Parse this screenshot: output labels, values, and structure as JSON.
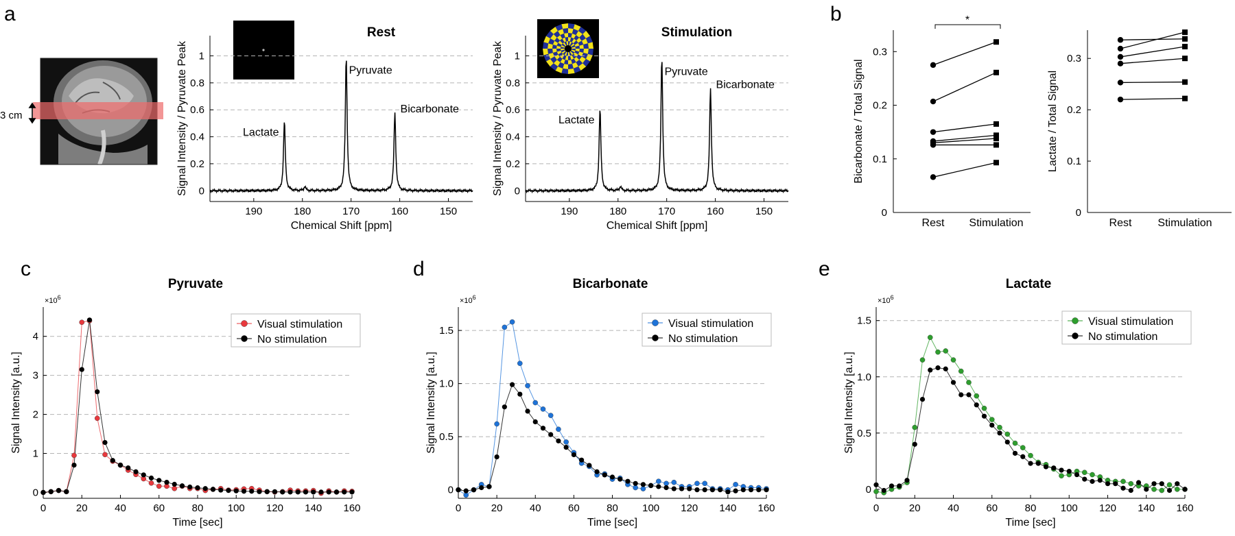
{
  "panels": {
    "a": "a",
    "b": "b",
    "c": "c",
    "d": "d",
    "e": "e",
    "slab_label": "3 cm"
  },
  "colors": {
    "stim_red": "#e8383d",
    "stim_blue": "#1e73d8",
    "stim_green": "#2e9e2e",
    "no_stim": "#000000",
    "slab": "#ee6a6a",
    "grid": "#b4b4b4",
    "checker_blue": "#1f2f9a",
    "checker_yellow": "#f2e21a"
  },
  "chart_data": [
    {
      "id": "spec-rest",
      "type": "line",
      "title": "Rest",
      "xlabel": "Chemical Shift [ppm]",
      "ylabel": "Signal Intensity / Pyruvate Peak",
      "xlim": [
        199,
        145
      ],
      "ylim": [
        -0.08,
        1.15
      ],
      "xticks": [
        190,
        180,
        170,
        160,
        150
      ],
      "yticks": [
        0,
        0.2,
        0.4,
        0.6,
        0.8,
        1
      ],
      "peaks": [
        {
          "label": "Lactate",
          "ppm": 183.7,
          "height": 0.52
        },
        {
          "label": "Pyruvate",
          "ppm": 171.0,
          "height": 1.0
        },
        {
          "label": "Bicarbonate",
          "ppm": 161.0,
          "height": 0.58
        }
      ],
      "small_peaks": [
        {
          "ppm": 179.5,
          "height": 0.03
        }
      ]
    },
    {
      "id": "spec-stim",
      "type": "line",
      "title": "Stimulation",
      "xlabel": "Chemical Shift [ppm]",
      "ylabel": "Signal Intensity / Pyruvate Peak",
      "xlim": [
        199,
        145
      ],
      "ylim": [
        -0.08,
        1.15
      ],
      "xticks": [
        190,
        180,
        170,
        160,
        150
      ],
      "yticks": [
        0,
        0.2,
        0.4,
        0.6,
        0.8,
        1
      ],
      "peaks": [
        {
          "label": "Lactate",
          "ppm": 183.7,
          "height": 0.61
        },
        {
          "label": "Pyruvate",
          "ppm": 171.0,
          "height": 0.99
        },
        {
          "label": "Bicarbonate",
          "ppm": 161.0,
          "height": 0.76
        }
      ],
      "small_peaks": [
        {
          "ppm": 179.5,
          "height": 0.03
        }
      ]
    },
    {
      "id": "bicarb-ratio",
      "type": "scatter",
      "title": "",
      "ylabel": "Bicarbonate / Total Signal",
      "categories": [
        "Rest",
        "Stimulation"
      ],
      "ylim": [
        0,
        0.34
      ],
      "yticks": [
        0,
        0.1,
        0.2,
        0.3
      ],
      "significance": "*",
      "pairs": [
        [
          0.275,
          0.318
        ],
        [
          0.207,
          0.261
        ],
        [
          0.15,
          0.165
        ],
        [
          0.133,
          0.144
        ],
        [
          0.13,
          0.138
        ],
        [
          0.126,
          0.126
        ],
        [
          0.066,
          0.093
        ]
      ]
    },
    {
      "id": "lactate-ratio",
      "type": "scatter",
      "title": "",
      "ylabel": "Lactate / Total Signal",
      "categories": [
        "Rest",
        "Stimulation"
      ],
      "ylim": [
        0,
        0.355
      ],
      "yticks": [
        0,
        0.1,
        0.2,
        0.3
      ],
      "pairs": [
        [
          0.336,
          0.338
        ],
        [
          0.319,
          0.351
        ],
        [
          0.303,
          0.323
        ],
        [
          0.29,
          0.3
        ],
        [
          0.253,
          0.254
        ],
        [
          0.22,
          0.222
        ]
      ]
    },
    {
      "id": "pyruvate",
      "type": "line",
      "title": "Pyruvate",
      "xlabel": "Time [sec]",
      "ylabel": "Signal Intensity [a.u.]",
      "yscale_label": "×10",
      "yscale_exp": "6",
      "xlim": [
        0,
        160
      ],
      "ylim": [
        -0.15,
        4.75
      ],
      "xticks": [
        0,
        20,
        40,
        60,
        80,
        100,
        120,
        140,
        160
      ],
      "yticks": [
        0,
        1,
        2,
        3,
        4
      ],
      "ytick_labels": [
        "0",
        "1",
        "2",
        "3",
        "4"
      ],
      "x": [
        0,
        4,
        8,
        12,
        16,
        20,
        24,
        28,
        32,
        36,
        40,
        44,
        48,
        52,
        56,
        60,
        64,
        68,
        72,
        76,
        80,
        84,
        88,
        92,
        96,
        100,
        104,
        108,
        112,
        116,
        120,
        124,
        128,
        132,
        136,
        140,
        144,
        148,
        152,
        156,
        160
      ],
      "series": [
        {
          "name": "Visual stimulation",
          "color": "#e8383d",
          "values": [
            0.0,
            0.02,
            0.05,
            0.02,
            0.95,
            4.36,
            4.4,
            1.9,
            0.97,
            0.8,
            0.7,
            0.57,
            0.46,
            0.35,
            0.24,
            0.16,
            0.16,
            0.1,
            0.16,
            0.1,
            0.1,
            0.05,
            0.08,
            0.1,
            0.06,
            0.07,
            0.09,
            0.1,
            0.06,
            0.02,
            0.01,
            0.02,
            0.06,
            0.04,
            0.04,
            0.05,
            -0.02,
            0.04,
            0.01,
            0.04,
            0.03
          ]
        },
        {
          "name": "No stimulation",
          "color": "#000000",
          "values": [
            0.0,
            0.02,
            0.05,
            0.02,
            0.7,
            3.15,
            4.42,
            2.58,
            1.28,
            0.82,
            0.7,
            0.63,
            0.53,
            0.45,
            0.37,
            0.31,
            0.26,
            0.21,
            0.17,
            0.14,
            0.12,
            0.1,
            0.08,
            0.06,
            0.05,
            0.04,
            0.03,
            0.03,
            0.02,
            0.02,
            0.02,
            0.01,
            0.01,
            0.01,
            0.01,
            0.01,
            0.01,
            0.01,
            0.01,
            0.01,
            0.01
          ]
        }
      ]
    },
    {
      "id": "bicarbonate",
      "type": "line",
      "title": "Bicarbonate",
      "xlabel": "Time [sec]",
      "ylabel": "Signal Intensity [a.u.]",
      "yscale_label": "×10",
      "yscale_exp": "6",
      "xlim": [
        0,
        160
      ],
      "ylim": [
        -0.08,
        1.72
      ],
      "xticks": [
        0,
        20,
        40,
        60,
        80,
        100,
        120,
        140,
        160
      ],
      "yticks": [
        0,
        0.5,
        1.0,
        1.5
      ],
      "ytick_labels": [
        "0",
        "0.5",
        "1.0",
        "1.5"
      ],
      "x": [
        0,
        4,
        8,
        12,
        16,
        20,
        24,
        28,
        32,
        36,
        40,
        44,
        48,
        52,
        56,
        60,
        64,
        68,
        72,
        76,
        80,
        84,
        88,
        92,
        96,
        100,
        104,
        108,
        112,
        116,
        120,
        124,
        128,
        132,
        136,
        140,
        144,
        148,
        152,
        156,
        160
      ],
      "series": [
        {
          "name": "Visual stimulation",
          "color": "#1e73d8",
          "values": [
            0.0,
            -0.05,
            0.0,
            0.05,
            0.03,
            0.62,
            1.53,
            1.58,
            1.19,
            0.98,
            0.82,
            0.76,
            0.7,
            0.57,
            0.45,
            0.35,
            0.25,
            0.22,
            0.14,
            0.15,
            0.1,
            0.11,
            0.05,
            0.02,
            0.01,
            0.04,
            0.08,
            0.06,
            0.07,
            0.03,
            0.03,
            0.06,
            0.06,
            0.01,
            0.01,
            0.0,
            0.05,
            0.03,
            0.02,
            0.02,
            0.01
          ]
        },
        {
          "name": "No stimulation",
          "color": "#000000",
          "values": [
            0.0,
            -0.01,
            0.0,
            0.02,
            0.03,
            0.31,
            0.78,
            0.99,
            0.9,
            0.74,
            0.64,
            0.58,
            0.52,
            0.46,
            0.4,
            0.33,
            0.28,
            0.23,
            0.17,
            0.14,
            0.12,
            0.1,
            0.08,
            0.06,
            0.05,
            0.04,
            0.03,
            0.02,
            0.01,
            0.01,
            0.01,
            0.0,
            0.0,
            0.0,
            0.0,
            -0.02,
            -0.01,
            0.0,
            0.0,
            0.0,
            0.0
          ]
        }
      ]
    },
    {
      "id": "lactate",
      "type": "line",
      "title": "Lactate",
      "xlabel": "Time [sec]",
      "ylabel": "Signal Intensity [a.u.]",
      "yscale_label": "×10",
      "yscale_exp": "6",
      "xlim": [
        0,
        160
      ],
      "ylim": [
        -0.08,
        1.62
      ],
      "xticks": [
        0,
        20,
        40,
        60,
        80,
        100,
        120,
        140,
        160
      ],
      "yticks": [
        0,
        0.5,
        1.0,
        1.5
      ],
      "ytick_labels": [
        "0",
        "0.5",
        "1.0",
        "1.5"
      ],
      "x": [
        0,
        4,
        8,
        12,
        16,
        20,
        24,
        28,
        32,
        36,
        40,
        44,
        48,
        52,
        56,
        60,
        64,
        68,
        72,
        76,
        80,
        84,
        88,
        92,
        96,
        100,
        104,
        108,
        112,
        116,
        120,
        124,
        128,
        132,
        136,
        140,
        144,
        148,
        152,
        156,
        160
      ],
      "series": [
        {
          "name": "Visual stimulation",
          "color": "#2e9e2e",
          "values": [
            -0.02,
            -0.03,
            0.0,
            0.02,
            0.06,
            0.55,
            1.15,
            1.35,
            1.22,
            1.23,
            1.15,
            1.05,
            0.95,
            0.83,
            0.72,
            0.62,
            0.55,
            0.49,
            0.41,
            0.37,
            0.3,
            0.24,
            0.22,
            0.18,
            0.12,
            0.13,
            0.16,
            0.15,
            0.13,
            0.11,
            0.08,
            0.07,
            0.07,
            0.05,
            0.03,
            0.03,
            0.0,
            -0.01,
            0.04,
            0.0,
            0.0
          ]
        },
        {
          "name": "No stimulation",
          "color": "#000000",
          "values": [
            0.04,
            -0.01,
            0.03,
            0.03,
            0.08,
            0.4,
            0.8,
            1.06,
            1.08,
            1.07,
            0.95,
            0.84,
            0.84,
            0.75,
            0.65,
            0.57,
            0.5,
            0.42,
            0.32,
            0.29,
            0.23,
            0.23,
            0.2,
            0.19,
            0.17,
            0.16,
            0.13,
            0.09,
            0.07,
            0.08,
            0.05,
            0.05,
            0.01,
            -0.01,
            0.06,
            0.0,
            0.05,
            0.05,
            -0.01,
            0.05,
            0.0
          ]
        }
      ]
    }
  ]
}
